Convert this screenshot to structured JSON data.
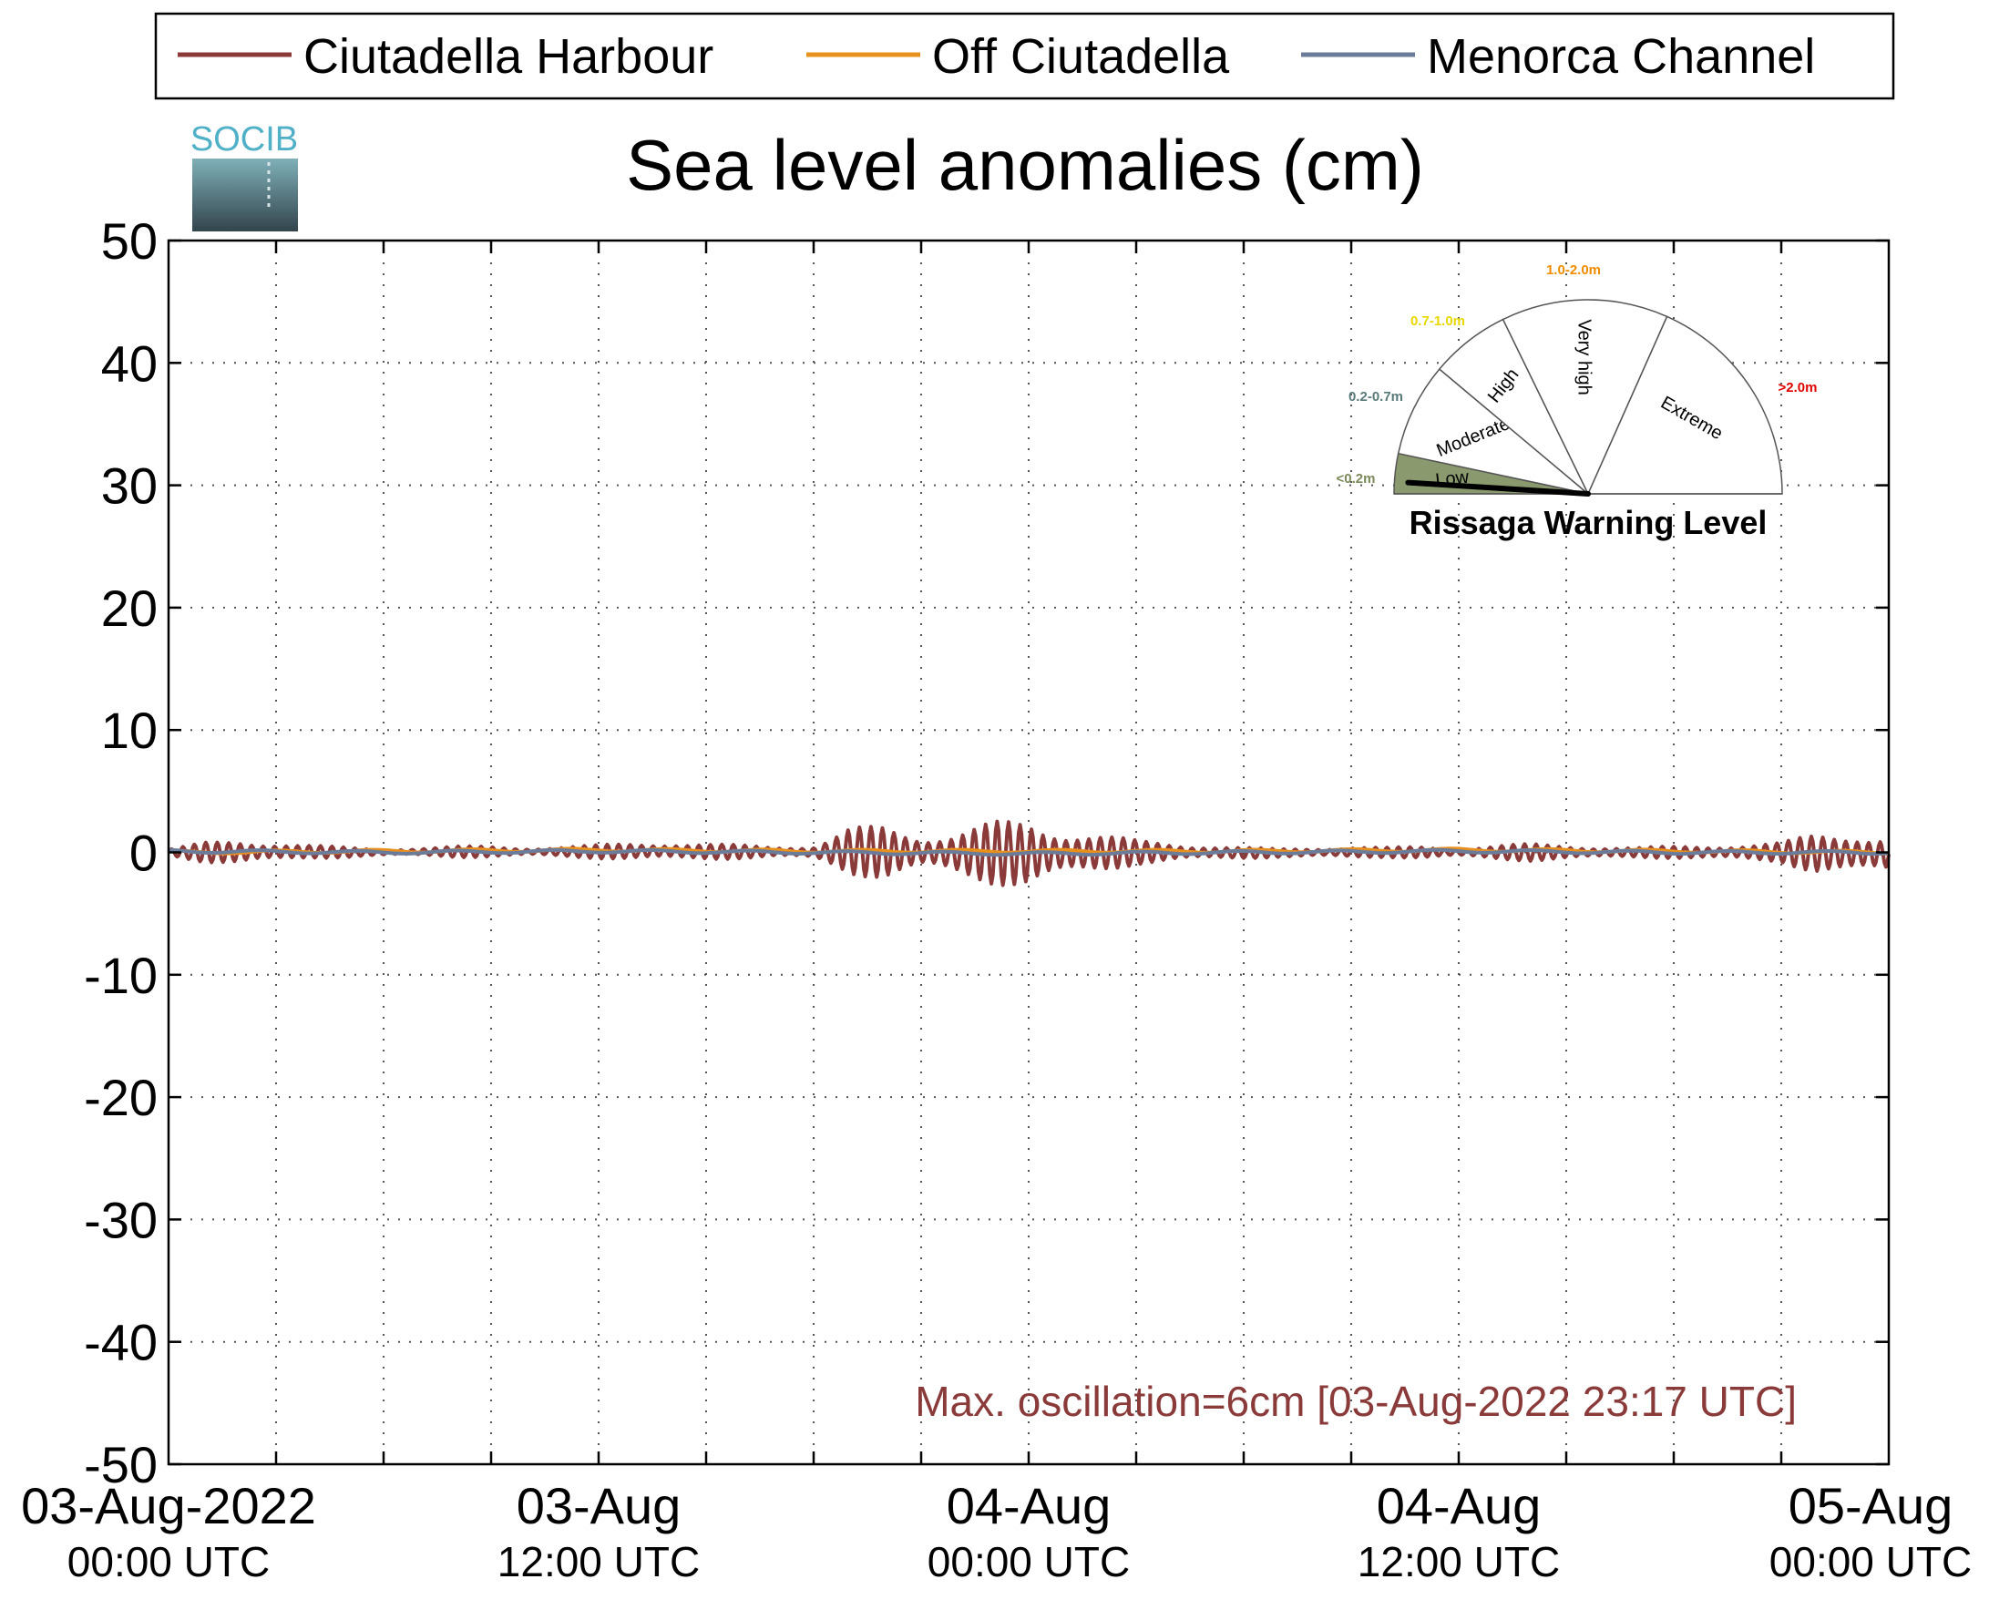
{
  "logo": {
    "text": "SOCIB"
  },
  "legend_items": [
    {
      "label": "Ciutadella Harbour",
      "color": "#8b3a3a"
    },
    {
      "label": "Off Ciutadella",
      "color": "#e8901e"
    },
    {
      "label": "Menorca Channel",
      "color": "#6b7b9a"
    }
  ],
  "annotation": {
    "text": "Max. oscillation=6cm [03-Aug-2022 23:17 UTC]",
    "color": "#8b3a3a"
  },
  "gauge": {
    "title": "Rissaga Warning Level",
    "needle_value_m": 0.06,
    "sectors": [
      {
        "name": "Low",
        "range": "<0.2m",
        "range_color": "#7a8a5a",
        "fill": "#8a9a6e"
      },
      {
        "name": "Moderate",
        "range": "0.2-0.7m",
        "range_color": "#5a7a7a",
        "fill": "#ffffff"
      },
      {
        "name": "High",
        "range": "0.7-1.0m",
        "range_color": "#e8d800",
        "fill": "#ffffff"
      },
      {
        "name": "Very high",
        "range": "1.0-2.0m",
        "range_color": "#f08c00",
        "fill": "#ffffff"
      },
      {
        "name": "Extreme",
        "range": ">2.0m",
        "range_color": "#e00000",
        "fill": "#ffffff"
      }
    ]
  },
  "chart_data": {
    "type": "line",
    "title": "Sea level anomalies (cm)",
    "xlabel": "",
    "ylabel": "",
    "ylim": [
      -50,
      50
    ],
    "yticks": [
      50,
      40,
      30,
      20,
      10,
      0,
      -10,
      -20,
      -30,
      -40,
      -50
    ],
    "xlim_hours": [
      0,
      48
    ],
    "xticks": [
      {
        "hour": 0,
        "date": "03-Aug-2022",
        "time": "00:00 UTC"
      },
      {
        "hour": 12,
        "date": "03-Aug",
        "time": "12:00 UTC"
      },
      {
        "hour": 24,
        "date": "04-Aug",
        "time": "00:00 UTC"
      },
      {
        "hour": 36,
        "date": "04-Aug",
        "time": "12:00 UTC"
      },
      {
        "hour": 48,
        "date": "05-Aug",
        "time": "00:00 UTC"
      }
    ],
    "grid": true,
    "legend_position": "top",
    "series": [
      {
        "name": "Ciutadella Harbour",
        "color": "#8b3a3a",
        "x_hours": [
          0,
          1,
          2,
          3,
          4,
          5,
          6,
          7,
          8,
          9,
          10,
          11,
          12,
          13,
          14,
          15,
          16,
          17,
          18,
          19,
          20,
          21,
          22,
          23,
          24,
          25,
          26,
          27,
          28,
          29,
          30,
          31,
          32,
          33,
          34,
          35,
          36,
          37,
          38,
          39,
          40,
          41,
          42,
          43,
          44,
          45,
          46,
          47,
          48
        ],
        "y_upper": [
          0.3,
          0.8,
          1.0,
          0.9,
          0.6,
          0.4,
          0.3,
          0.4,
          0.5,
          0.5,
          0.4,
          0.5,
          0.6,
          0.8,
          0.9,
          0.7,
          0.6,
          0.5,
          0.6,
          2.0,
          2.2,
          1.5,
          1.8,
          2.5,
          2.7,
          2.0,
          1.5,
          1.0,
          0.8,
          0.6,
          0.4,
          0.3,
          0.4,
          0.5,
          0.4,
          0.5,
          0.4,
          0.6,
          0.7,
          0.6,
          0.5,
          0.4,
          0.5,
          0.6,
          0.7,
          0.8,
          1.6,
          1.8,
          1.3
        ],
        "y_lower": [
          -0.3,
          -0.8,
          -1.0,
          -0.8,
          -0.5,
          -0.4,
          -0.3,
          -0.3,
          -0.4,
          -0.4,
          -0.3,
          -0.4,
          -0.5,
          -0.6,
          -0.7,
          -0.6,
          -0.5,
          -0.4,
          -0.6,
          -1.8,
          -2.2,
          -1.5,
          -2.0,
          -2.6,
          -3.0,
          -2.2,
          -1.6,
          -1.0,
          -0.8,
          -0.6,
          -0.5,
          -0.4,
          -0.4,
          -0.5,
          -0.4,
          -0.5,
          -0.4,
          -0.6,
          -0.7,
          -0.6,
          -0.5,
          -0.4,
          -0.5,
          -0.6,
          -0.7,
          -0.8,
          -1.8,
          -2.0,
          -1.6
        ]
      },
      {
        "name": "Off Ciutadella",
        "color": "#e8901e",
        "x_hours": [
          0,
          6,
          12,
          18,
          24,
          30,
          36,
          42,
          48
        ],
        "y": [
          0.0,
          0.1,
          0.2,
          0.1,
          0.1,
          0.1,
          0.2,
          0.1,
          0.0
        ]
      },
      {
        "name": "Menorca Channel",
        "color": "#6b7b9a",
        "x_hours": [
          0,
          6,
          12,
          18,
          24,
          30,
          36,
          42,
          48
        ],
        "y": [
          0.1,
          0.0,
          0.1,
          0.0,
          -0.1,
          0.0,
          0.1,
          0.0,
          0.0
        ]
      }
    ]
  }
}
